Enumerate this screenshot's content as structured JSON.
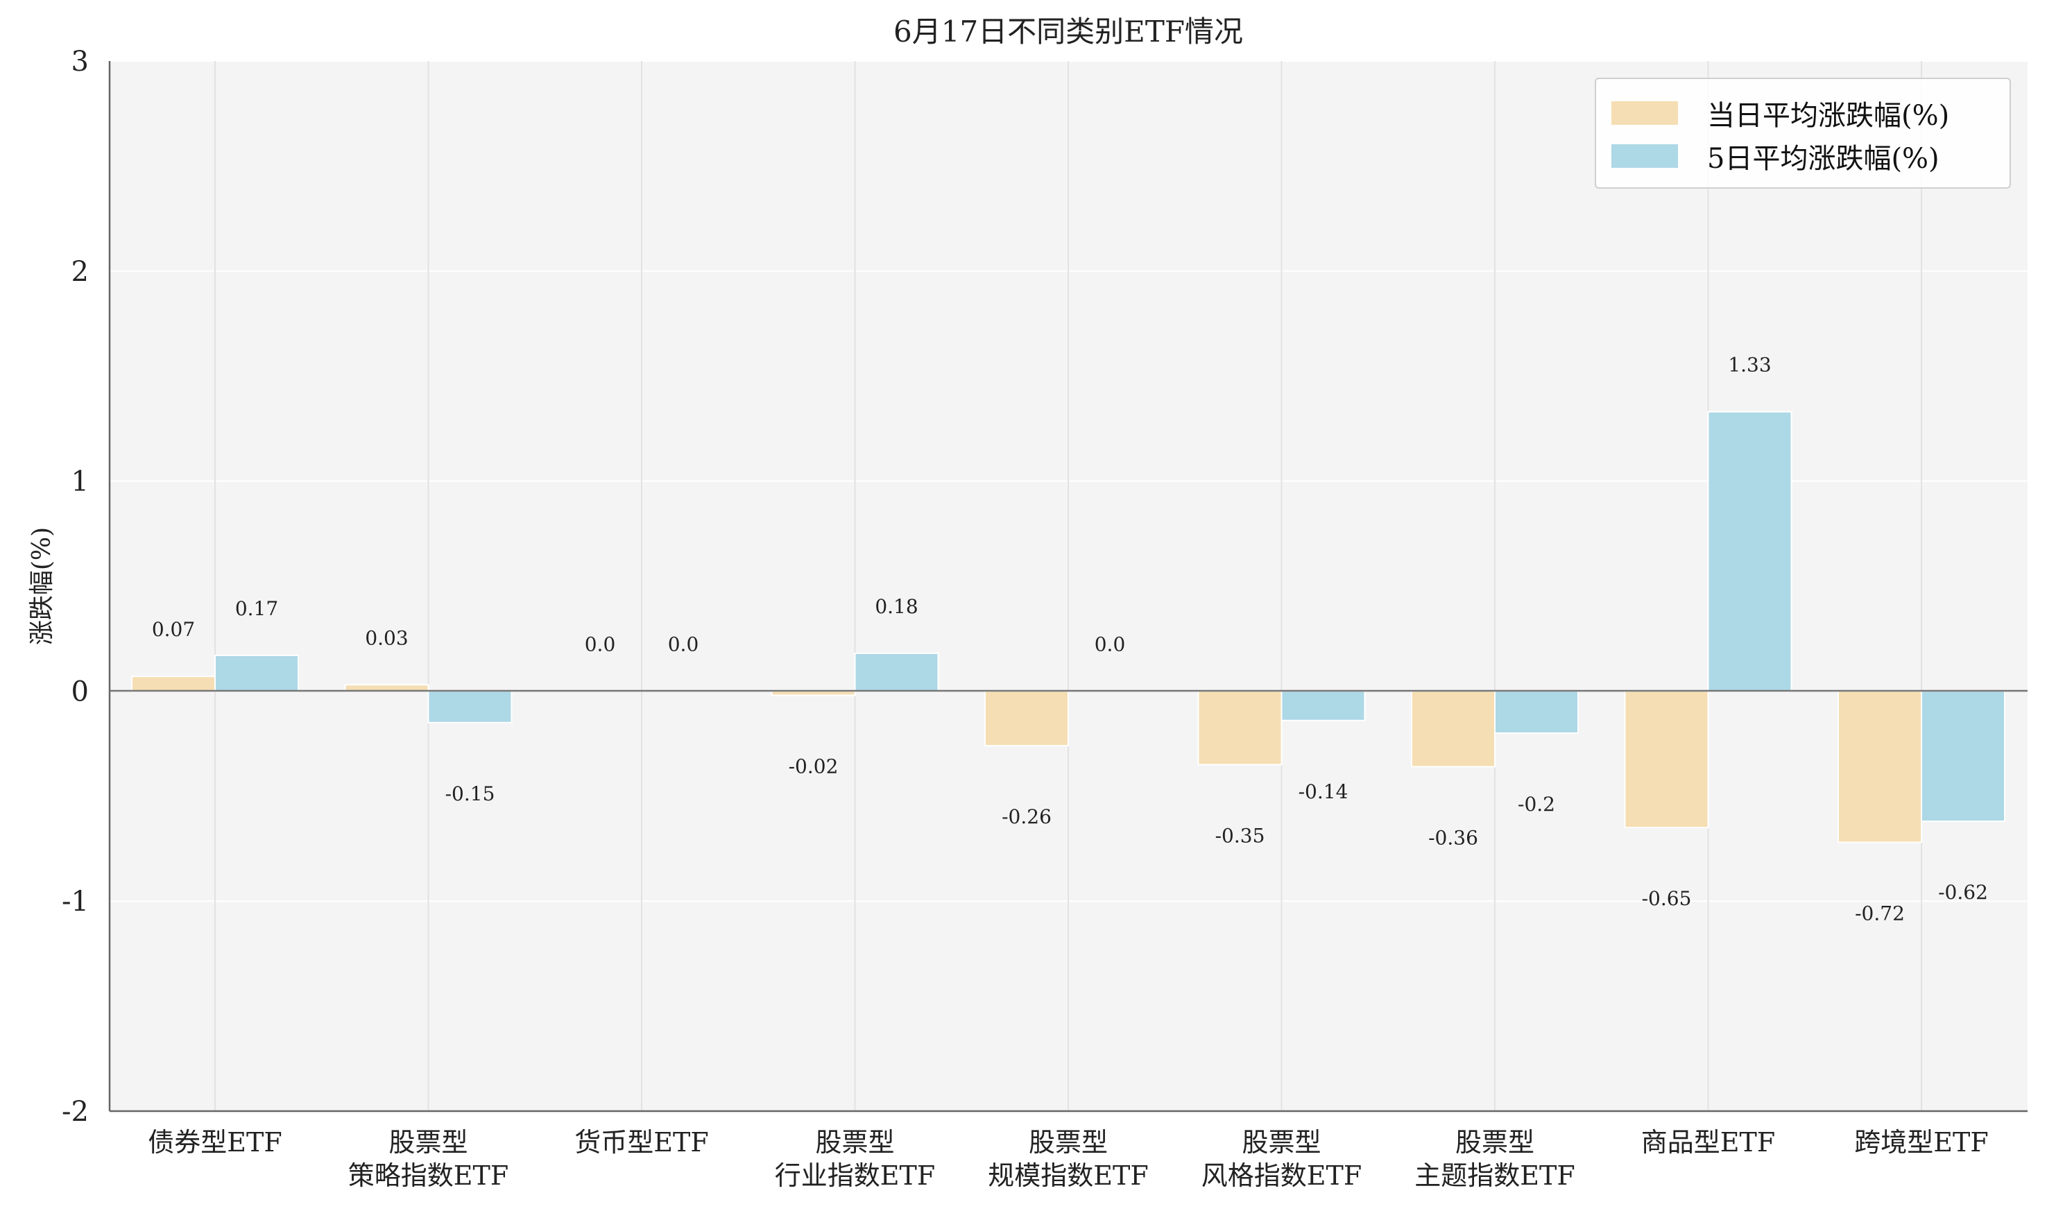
{
  "chart_data": {
    "type": "bar",
    "title": "6月17日不同类别ETF情况",
    "xlabel": "",
    "ylabel": "涨跌幅(%)",
    "ylim": [
      -2,
      3
    ],
    "yticks": [
      "3",
      "2",
      "1",
      "0",
      "-1",
      "-2"
    ],
    "grid": true,
    "legend_position": "top-right",
    "categories": [
      [
        "债券型ETF"
      ],
      [
        "股票型",
        "策略指数ETF"
      ],
      [
        "货币型ETF"
      ],
      [
        "股票型",
        "行业指数ETF"
      ],
      [
        "股票型",
        "规模指数ETF"
      ],
      [
        "股票型",
        "风格指数ETF"
      ],
      [
        "股票型",
        "主题指数ETF"
      ],
      [
        "商品型ETF"
      ],
      [
        "跨境型ETF"
      ]
    ],
    "series": [
      {
        "name": "当日平均涨跌幅(%)",
        "color": "#f5deb3",
        "values": [
          0.07,
          0.03,
          0.0,
          -0.02,
          -0.26,
          -0.35,
          -0.36,
          -0.65,
          -0.72
        ],
        "labels": [
          "0.07",
          "0.03",
          "0.0",
          "-0.02",
          "-0.26",
          "-0.35",
          "-0.36",
          "-0.65",
          "-0.72"
        ]
      },
      {
        "name": "5日平均涨跌幅(%)",
        "color": "#add8e6",
        "values": [
          0.17,
          -0.15,
          0.0,
          0.18,
          0.0,
          -0.14,
          -0.2,
          1.33,
          -0.62
        ],
        "labels": [
          "0.17",
          "-0.15",
          "0.0",
          "0.18",
          "0.0",
          "-0.14",
          "-0.2",
          "1.33",
          "-0.62"
        ]
      }
    ]
  }
}
